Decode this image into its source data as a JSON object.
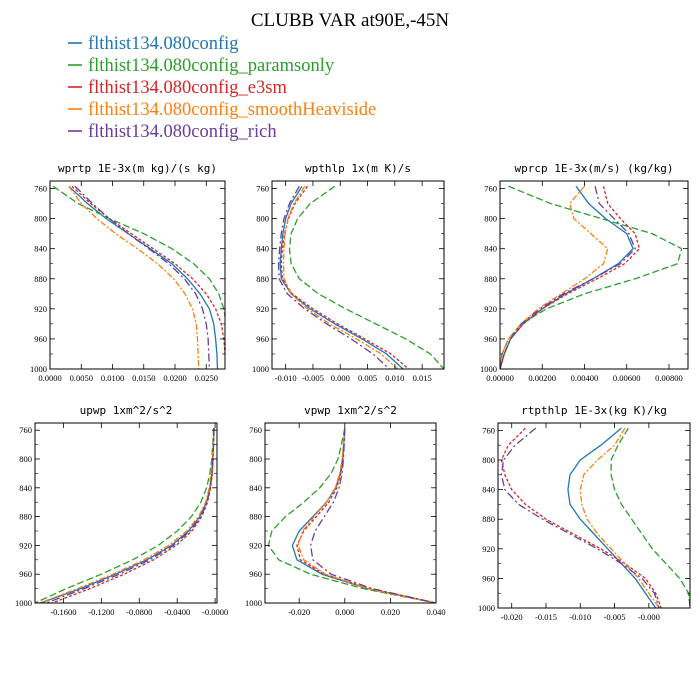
{
  "figure": {
    "title": "CLUBB VAR at90E,-45N"
  },
  "colors": {
    "blue": "#1f77b4",
    "green": "#2ca02c",
    "red": "#d62728",
    "orange": "#ff7f0e",
    "purple": "#6a3d9a"
  },
  "legend": [
    {
      "label": "flthist134.080config",
      "color": "#1f77b4"
    },
    {
      "label": "flthist134.080config_paramsonly",
      "color": "#2ca02c"
    },
    {
      "label": "flthist134.080config_e3sm",
      "color": "#d62728"
    },
    {
      "label": "flthist134.080config_smoothHeaviside",
      "color": "#ff7f0e"
    },
    {
      "label": "flthist134.080config_rich",
      "color": "#6a3d9a"
    }
  ],
  "chart_data": [
    {
      "type": "line",
      "title": "wprtp  1E-3x(m kg)/(s kg)",
      "xlim": [
        0.0,
        0.028
      ],
      "ylim": [
        1000,
        750
      ],
      "xticks": [
        0.0,
        0.005,
        0.01,
        0.015,
        0.02,
        0.025
      ],
      "xtick_labels": [
        "0.0000",
        "0.0050",
        "0.0100",
        "0.0150",
        "0.0200",
        "0.0250"
      ],
      "yticks": [
        760,
        800,
        840,
        880,
        920,
        960,
        1000
      ],
      "y": [
        757,
        780,
        800,
        820,
        840,
        860,
        880,
        900,
        920,
        940,
        960,
        980,
        1000
      ],
      "series": [
        {
          "name": "flthist134.080config",
          "x": [
            0.003,
            0.006,
            0.009,
            0.0125,
            0.016,
            0.0195,
            0.022,
            0.024,
            0.0255,
            0.0262,
            0.0265,
            0.0267,
            0.0268
          ]
        },
        {
          "name": "flthist134.080config_paramsonly",
          "x": [
            0.0005,
            0.0045,
            0.0095,
            0.015,
            0.0195,
            0.023,
            0.0255,
            0.027,
            0.0278,
            0.0282,
            0.0284,
            0.0285,
            0.0285
          ]
        },
        {
          "name": "flthist134.080config_e3sm",
          "x": [
            0.0035,
            0.0065,
            0.0095,
            0.013,
            0.0165,
            0.02,
            0.0228,
            0.025,
            0.0265,
            0.0274,
            0.0278,
            0.028,
            0.0281
          ]
        },
        {
          "name": "flthist134.080config_smoothHeaviside",
          "x": [
            0.003,
            0.005,
            0.0075,
            0.0105,
            0.014,
            0.0172,
            0.0198,
            0.0216,
            0.0228,
            0.0234,
            0.0236,
            0.0237,
            0.0238
          ]
        },
        {
          "name": "flthist134.080config_rich",
          "x": [
            0.004,
            0.0068,
            0.0095,
            0.0125,
            0.0158,
            0.019,
            0.0215,
            0.0233,
            0.0244,
            0.025,
            0.0253,
            0.0254,
            0.0255
          ]
        }
      ]
    },
    {
      "type": "line",
      "title": "wpthlp  1x(m K)/s",
      "xlim": [
        -0.0125,
        0.019
      ],
      "ylim": [
        1000,
        750
      ],
      "xticks": [
        -0.01,
        -0.005,
        0.0,
        0.005,
        0.01,
        0.015
      ],
      "xtick_labels": [
        "-0.010",
        "-0.005",
        "0.000",
        "0.005",
        "0.010",
        "0.015"
      ],
      "yticks": [
        760,
        800,
        840,
        880,
        920,
        960,
        1000
      ],
      "y": [
        757,
        780,
        800,
        820,
        840,
        860,
        880,
        900,
        920,
        940,
        960,
        980,
        1000
      ],
      "series": [
        {
          "name": "flthist134.080config",
          "x": [
            -0.007,
            -0.009,
            -0.01,
            -0.0105,
            -0.0108,
            -0.011,
            -0.0108,
            -0.009,
            -0.0055,
            -0.001,
            0.004,
            0.0085,
            0.0115
          ]
        },
        {
          "name": "flthist134.080config_paramsonly",
          "x": [
            -0.001,
            -0.0055,
            -0.0078,
            -0.009,
            -0.0093,
            -0.009,
            -0.0075,
            -0.004,
            0.001,
            0.0065,
            0.012,
            0.0165,
            0.019
          ]
        },
        {
          "name": "flthist134.080config_e3sm",
          "x": [
            -0.006,
            -0.0083,
            -0.0095,
            -0.0102,
            -0.0106,
            -0.0108,
            -0.0106,
            -0.0088,
            -0.005,
            -0.0005,
            0.0045,
            0.0093,
            0.0125
          ]
        },
        {
          "name": "flthist134.080config_smoothHeaviside",
          "x": [
            -0.0065,
            -0.0085,
            -0.0096,
            -0.0101,
            -0.0103,
            -0.0104,
            -0.0103,
            -0.009,
            -0.006,
            -0.002,
            0.003,
            0.0075,
            0.0105
          ]
        },
        {
          "name": "flthist134.080config_rich",
          "x": [
            -0.0075,
            -0.0093,
            -0.0103,
            -0.0108,
            -0.0111,
            -0.0113,
            -0.0112,
            -0.0097,
            -0.0065,
            -0.0025,
            0.002,
            0.006,
            0.009
          ]
        }
      ]
    },
    {
      "type": "line",
      "title": "wprcp  1E-3x(m/s) (kg/kg)",
      "xlim": [
        0.0,
        0.0089
      ],
      "ylim": [
        1000,
        750
      ],
      "xticks": [
        0.0,
        0.002,
        0.004,
        0.006,
        0.008
      ],
      "xtick_labels": [
        "0.00000",
        "0.00200",
        "0.00400",
        "0.00600",
        "0.00800"
      ],
      "yticks": [
        760,
        800,
        840,
        880,
        920,
        960,
        1000
      ],
      "y": [
        757,
        780,
        800,
        820,
        840,
        860,
        880,
        900,
        920,
        940,
        960,
        980,
        1000
      ],
      "series": [
        {
          "name": "flthist134.080config",
          "x": [
            0.0036,
            0.0042,
            0.005,
            0.006,
            0.0063,
            0.0056,
            0.0044,
            0.0031,
            0.002,
            0.0011,
            0.0005,
            0.0002,
            0.0
          ]
        },
        {
          "name": "flthist134.080config_paramsonly",
          "x": [
            0.0004,
            0.0024,
            0.0048,
            0.0072,
            0.0086,
            0.0084,
            0.0064,
            0.004,
            0.0022,
            0.001,
            0.0004,
            0.0001,
            0.0
          ]
        },
        {
          "name": "flthist134.080config_e3sm",
          "x": [
            0.0049,
            0.0051,
            0.0057,
            0.0064,
            0.0066,
            0.0059,
            0.0046,
            0.0032,
            0.002,
            0.0011,
            0.0005,
            0.0002,
            0.0
          ]
        },
        {
          "name": "flthist134.080config_smoothHeaviside",
          "x": [
            0.004,
            0.0033,
            0.0035,
            0.0043,
            0.0051,
            0.0049,
            0.004,
            0.0029,
            0.0018,
            0.001,
            0.0004,
            0.0001,
            0.0
          ]
        },
        {
          "name": "flthist134.080config_rich",
          "x": [
            0.0045,
            0.0047,
            0.0054,
            0.0061,
            0.0064,
            0.0057,
            0.0044,
            0.003,
            0.0019,
            0.001,
            0.0005,
            0.0002,
            0.0
          ]
        }
      ]
    },
    {
      "type": "line",
      "title": "upwp  1xm^2/s^2",
      "xlim": [
        -0.19,
        0.002
      ],
      "ylim": [
        1000,
        750
      ],
      "xticks": [
        -0.16,
        -0.12,
        -0.08,
        -0.04,
        0.0
      ],
      "xtick_labels": [
        "-0.1600",
        "-0.1200",
        "-0.0800",
        "-0.0400",
        "-0.0000"
      ],
      "yticks": [
        760,
        800,
        840,
        880,
        920,
        960,
        1000
      ],
      "y": [
        757,
        780,
        800,
        820,
        840,
        860,
        880,
        900,
        920,
        940,
        960,
        980,
        1000
      ],
      "series": [
        {
          "name": "flthist134.080config",
          "x": [
            -0.0012,
            -0.0018,
            -0.0025,
            -0.0035,
            -0.0055,
            -0.009,
            -0.016,
            -0.028,
            -0.046,
            -0.072,
            -0.105,
            -0.142,
            -0.184
          ]
        },
        {
          "name": "flthist134.080config_paramsonly",
          "x": [
            -0.0015,
            -0.0025,
            -0.0035,
            -0.0055,
            -0.009,
            -0.015,
            -0.025,
            -0.04,
            -0.06,
            -0.087,
            -0.12,
            -0.157,
            -0.19
          ]
        },
        {
          "name": "flthist134.080config_e3sm",
          "x": [
            -0.001,
            -0.0016,
            -0.0022,
            -0.003,
            -0.0048,
            -0.008,
            -0.014,
            -0.0245,
            -0.041,
            -0.065,
            -0.096,
            -0.132,
            -0.172
          ]
        },
        {
          "name": "flthist134.080config_smoothHeaviside",
          "x": [
            -0.0013,
            -0.002,
            -0.0027,
            -0.004,
            -0.0062,
            -0.01,
            -0.0175,
            -0.03,
            -0.049,
            -0.075,
            -0.108,
            -0.145,
            -0.185
          ]
        },
        {
          "name": "flthist134.080config_rich",
          "x": [
            -0.0011,
            -0.0017,
            -0.0023,
            -0.0032,
            -0.005,
            -0.0085,
            -0.015,
            -0.0265,
            -0.044,
            -0.069,
            -0.101,
            -0.138,
            -0.178
          ]
        }
      ]
    },
    {
      "type": "line",
      "title": "vpwp  1xm^2/s^2",
      "xlim": [
        -0.035,
        0.04
      ],
      "ylim": [
        1000,
        750
      ],
      "xticks": [
        -0.02,
        0.0,
        0.02,
        0.04
      ],
      "xtick_labels": [
        "-0.020",
        "0.000",
        "0.020",
        "0.040"
      ],
      "yticks": [
        760,
        800,
        840,
        880,
        920,
        960,
        1000
      ],
      "y": [
        757,
        780,
        800,
        820,
        840,
        860,
        880,
        900,
        920,
        940,
        960,
        980,
        1000
      ],
      "series": [
        {
          "name": "flthist134.080config",
          "x": [
            0.0,
            -0.0005,
            -0.001,
            -0.002,
            -0.004,
            -0.008,
            -0.014,
            -0.02,
            -0.023,
            -0.021,
            -0.01,
            0.01,
            0.04
          ]
        },
        {
          "name": "flthist134.080config_paramsonly",
          "x": [
            0.0,
            -0.0015,
            -0.003,
            -0.006,
            -0.011,
            -0.018,
            -0.026,
            -0.032,
            -0.0335,
            -0.029,
            -0.015,
            0.008,
            0.04
          ]
        },
        {
          "name": "flthist134.080config_e3sm",
          "x": [
            0.0,
            -0.0004,
            -0.0008,
            -0.0017,
            -0.0035,
            -0.007,
            -0.0125,
            -0.018,
            -0.021,
            -0.0195,
            -0.009,
            0.011,
            0.04
          ]
        },
        {
          "name": "flthist134.080config_smoothHeaviside",
          "x": [
            0.0,
            -0.0006,
            -0.0012,
            -0.0022,
            -0.0042,
            -0.008,
            -0.0135,
            -0.0185,
            -0.0205,
            -0.018,
            -0.0085,
            0.01,
            0.04
          ]
        },
        {
          "name": "flthist134.080config_rich",
          "x": [
            0.0,
            -0.0003,
            -0.0006,
            -0.0012,
            -0.0025,
            -0.005,
            -0.009,
            -0.013,
            -0.015,
            -0.014,
            -0.006,
            0.012,
            0.04
          ]
        }
      ]
    },
    {
      "type": "line",
      "title": "rtpthlp  1E-3x(kg K)/kg",
      "xlim": [
        -0.022,
        0.006
      ],
      "ylim": [
        1000,
        750
      ],
      "xticks": [
        -0.02,
        -0.015,
        -0.01,
        -0.005,
        0.0
      ],
      "xtick_labels": [
        "-0.020",
        "-0.015",
        "-0.010",
        "-0.005",
        "-0.000"
      ],
      "yticks": [
        760,
        800,
        840,
        880,
        920,
        960,
        1000
      ],
      "y": [
        757,
        780,
        800,
        820,
        840,
        860,
        880,
        900,
        920,
        940,
        960,
        980,
        1000
      ],
      "series": [
        {
          "name": "flthist134.080config",
          "x": [
            -0.004,
            -0.007,
            -0.01,
            -0.0115,
            -0.0118,
            -0.0115,
            -0.01,
            -0.008,
            -0.006,
            -0.004,
            -0.002,
            -0.0005,
            0.001
          ]
        },
        {
          "name": "flthist134.080config_paramsonly",
          "x": [
            -0.003,
            -0.0045,
            -0.0055,
            -0.0055,
            -0.005,
            -0.004,
            -0.0025,
            -0.001,
            0.0005,
            0.0025,
            0.0045,
            0.0058,
            0.006
          ]
        },
        {
          "name": "flthist134.080config_e3sm",
          "x": [
            -0.018,
            -0.0205,
            -0.0215,
            -0.021,
            -0.02,
            -0.018,
            -0.015,
            -0.011,
            -0.007,
            -0.0035,
            -0.0005,
            0.001,
            0.0018
          ]
        },
        {
          "name": "flthist134.080config_smoothHeaviside",
          "x": [
            -0.0035,
            -0.005,
            -0.0075,
            -0.0095,
            -0.01,
            -0.0098,
            -0.009,
            -0.0075,
            -0.0055,
            -0.0035,
            -0.0015,
            0.0,
            0.0015
          ]
        },
        {
          "name": "flthist134.080config_rich",
          "x": [
            -0.0165,
            -0.0195,
            -0.0212,
            -0.0215,
            -0.021,
            -0.019,
            -0.0155,
            -0.0115,
            -0.0075,
            -0.004,
            -0.001,
            0.0008,
            0.0015
          ]
        }
      ]
    }
  ]
}
